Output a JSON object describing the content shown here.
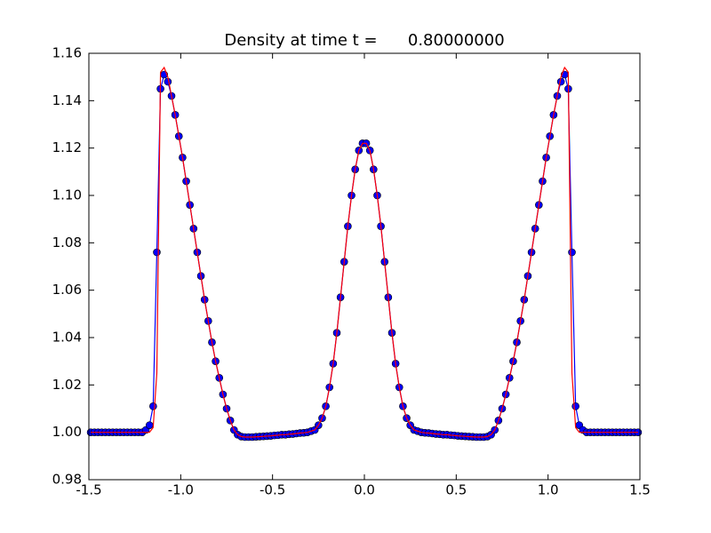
{
  "chart_data": {
    "type": "line",
    "title": "Density at time t =      0.80000000",
    "x": [
      -1.49,
      -1.47,
      -1.45,
      -1.43,
      -1.41,
      -1.39,
      -1.37,
      -1.35,
      -1.33,
      -1.31,
      -1.29,
      -1.27,
      -1.25,
      -1.23,
      -1.21,
      -1.19,
      -1.17,
      -1.15,
      -1.13,
      -1.11,
      -1.09,
      -1.07,
      -1.05,
      -1.03,
      -1.01,
      -0.99,
      -0.97,
      -0.95,
      -0.93,
      -0.91,
      -0.89,
      -0.87,
      -0.85,
      -0.83,
      -0.81,
      -0.79,
      -0.77,
      -0.75,
      -0.73,
      -0.71,
      -0.69,
      -0.67,
      -0.65,
      -0.63,
      -0.61,
      -0.59,
      -0.57,
      -0.55,
      -0.53,
      -0.51,
      -0.49,
      -0.47,
      -0.45,
      -0.43,
      -0.41,
      -0.39,
      -0.37,
      -0.35,
      -0.33,
      -0.31,
      -0.29,
      -0.27,
      -0.25,
      -0.23,
      -0.21,
      -0.19,
      -0.17,
      -0.15,
      -0.13,
      -0.11,
      -0.09,
      -0.07,
      -0.05,
      -0.03,
      -0.01,
      0.01,
      0.03,
      0.05,
      0.07,
      0.09,
      0.11,
      0.13,
      0.15,
      0.17,
      0.19,
      0.21,
      0.23,
      0.25,
      0.27,
      0.29,
      0.31,
      0.33,
      0.35,
      0.37,
      0.39,
      0.41,
      0.43,
      0.45,
      0.47,
      0.49,
      0.51,
      0.53,
      0.55,
      0.57,
      0.59,
      0.61,
      0.63,
      0.65,
      0.67,
      0.69,
      0.71,
      0.73,
      0.75,
      0.77,
      0.79,
      0.81,
      0.83,
      0.85,
      0.87,
      0.89,
      0.91,
      0.93,
      0.95,
      0.97,
      0.99,
      1.01,
      1.03,
      1.05,
      1.07,
      1.09,
      1.11,
      1.13,
      1.15,
      1.17,
      1.19,
      1.21,
      1.23,
      1.25,
      1.27,
      1.29,
      1.31,
      1.33,
      1.35,
      1.37,
      1.39,
      1.41,
      1.43,
      1.45,
      1.47,
      1.49
    ],
    "series": [
      {
        "color": "#0000ff",
        "marker": true,
        "values": [
          1.0,
          1.0,
          1.0,
          1.0,
          1.0,
          1.0,
          1.0,
          1.0,
          1.0,
          1.0,
          1.0,
          1.0,
          1.0,
          1.0,
          1.0,
          1.001,
          1.003,
          1.011,
          1.076,
          1.145,
          1.151,
          1.148,
          1.142,
          1.134,
          1.125,
          1.116,
          1.106,
          1.096,
          1.086,
          1.076,
          1.066,
          1.056,
          1.047,
          1.038,
          1.03,
          1.023,
          1.016,
          1.01,
          1.005,
          1.001,
          0.999,
          0.9982,
          0.998,
          0.998,
          0.998,
          0.9981,
          0.9982,
          0.9983,
          0.9984,
          0.9985,
          0.9987,
          0.9988,
          0.999,
          0.999,
          0.9992,
          0.9993,
          0.9995,
          0.9997,
          0.9998,
          1.0,
          1.0005,
          1.001,
          1.003,
          1.006,
          1.011,
          1.019,
          1.029,
          1.042,
          1.057,
          1.072,
          1.087,
          1.1,
          1.111,
          1.119,
          1.122,
          1.122,
          1.119,
          1.111,
          1.1,
          1.087,
          1.072,
          1.057,
          1.042,
          1.029,
          1.019,
          1.011,
          1.006,
          1.003,
          1.001,
          1.0005,
          1.0,
          0.9998,
          0.9997,
          0.9995,
          0.9993,
          0.9992,
          0.999,
          0.999,
          0.9988,
          0.9987,
          0.9985,
          0.9984,
          0.9983,
          0.9982,
          0.9981,
          0.998,
          0.998,
          0.998,
          0.9982,
          0.999,
          1.001,
          1.005,
          1.01,
          1.016,
          1.023,
          1.03,
          1.038,
          1.047,
          1.056,
          1.066,
          1.076,
          1.086,
          1.096,
          1.106,
          1.116,
          1.125,
          1.134,
          1.142,
          1.148,
          1.151,
          1.145,
          1.076,
          1.011,
          1.003,
          1.001,
          1.0,
          1.0,
          1.0,
          1.0,
          1.0,
          1.0,
          1.0,
          1.0,
          1.0,
          1.0,
          1.0,
          1.0,
          1.0,
          1.0,
          1.0
        ]
      },
      {
        "color": "#ff0000",
        "marker": false,
        "values": [
          1.0,
          1.0,
          1.0,
          1.0,
          1.0,
          1.0,
          1.0,
          1.0,
          1.0,
          1.0,
          1.0,
          1.0,
          1.0,
          1.0,
          1.0,
          1.0,
          1.0,
          1.002,
          1.025,
          1.152,
          1.154,
          1.15,
          1.142,
          1.134,
          1.125,
          1.116,
          1.106,
          1.096,
          1.086,
          1.076,
          1.066,
          1.056,
          1.047,
          1.038,
          1.03,
          1.023,
          1.016,
          1.01,
          1.005,
          1.001,
          0.999,
          0.9982,
          0.998,
          0.998,
          0.998,
          0.9981,
          0.9982,
          0.9983,
          0.9984,
          0.9985,
          0.9987,
          0.9988,
          0.999,
          0.999,
          0.9992,
          0.9993,
          0.9995,
          0.9997,
          0.9998,
          1.0,
          1.0005,
          1.001,
          1.003,
          1.006,
          1.011,
          1.019,
          1.029,
          1.042,
          1.057,
          1.072,
          1.087,
          1.1,
          1.111,
          1.119,
          1.122,
          1.122,
          1.119,
          1.111,
          1.1,
          1.087,
          1.072,
          1.057,
          1.042,
          1.029,
          1.019,
          1.011,
          1.006,
          1.003,
          1.001,
          1.0005,
          1.0,
          0.9998,
          0.9997,
          0.9995,
          0.9993,
          0.9992,
          0.999,
          0.999,
          0.9988,
          0.9987,
          0.9985,
          0.9984,
          0.9983,
          0.9982,
          0.9981,
          0.998,
          0.998,
          0.998,
          0.9982,
          0.999,
          1.001,
          1.005,
          1.01,
          1.016,
          1.023,
          1.03,
          1.038,
          1.047,
          1.056,
          1.066,
          1.076,
          1.086,
          1.096,
          1.106,
          1.116,
          1.125,
          1.134,
          1.142,
          1.15,
          1.154,
          1.152,
          1.025,
          1.002,
          1.0,
          1.0,
          1.0,
          1.0,
          1.0,
          1.0,
          1.0,
          1.0,
          1.0,
          1.0,
          1.0,
          1.0,
          1.0,
          1.0,
          1.0,
          1.0,
          1.0
        ]
      }
    ],
    "xlim": [
      -1.5,
      1.5
    ],
    "xticks": [
      -1.5,
      {
        "value": -1,
        "label": "-1.0"
      },
      -0.5,
      {
        "value": 0,
        "label": "0.0"
      },
      0.5,
      {
        "value": 1,
        "label": "1.0"
      },
      1.5
    ],
    "ylim": [
      0.98,
      1.16
    ],
    "yticks": [
      0.98,
      {
        "value": 1,
        "label": "1.00"
      },
      1.02,
      1.04,
      1.06,
      1.08,
      {
        "value": 1.1,
        "label": "1.10"
      },
      1.12,
      1.14,
      1.16
    ],
    "grid": false
  }
}
